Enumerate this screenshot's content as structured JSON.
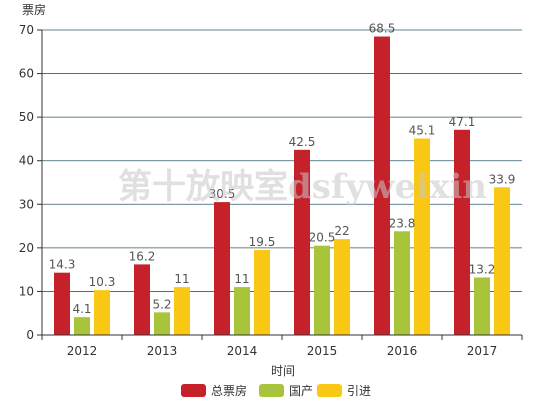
{
  "chart_data": {
    "type": "bar",
    "ylabel": "票房",
    "xlabel": "时间",
    "categories": [
      "2012",
      "2013",
      "2014",
      "2015",
      "2016",
      "2017"
    ],
    "yticks": [
      0,
      10,
      20,
      30,
      40,
      50,
      60,
      70
    ],
    "ylim": [
      0,
      70
    ],
    "grid": true,
    "legend_position": "bottom",
    "series": [
      {
        "name": "总票房",
        "color": "#c4212a",
        "values": [
          14.3,
          16.2,
          30.5,
          42.5,
          68.5,
          47.1
        ]
      },
      {
        "name": "国产",
        "color": "#a8c43a",
        "values": [
          4.1,
          5.2,
          11,
          20.5,
          23.8,
          13.2
        ]
      },
      {
        "name": "引进",
        "color": "#fbc715",
        "values": [
          10.3,
          11,
          19.5,
          22,
          45.1,
          33.9
        ]
      }
    ]
  },
  "watermark": "第十放映室dsfyweixin"
}
